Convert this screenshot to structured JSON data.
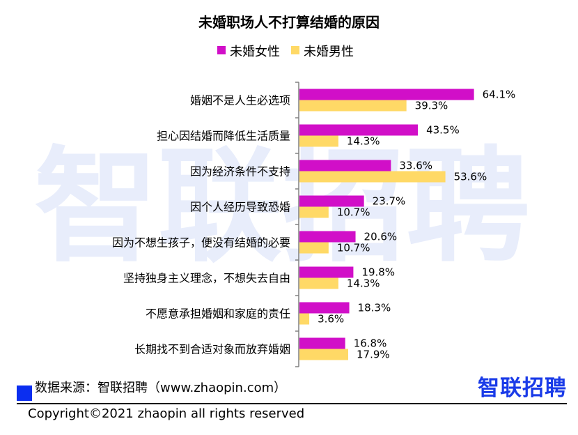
{
  "chart_data": {
    "type": "bar",
    "orientation": "horizontal",
    "title": "未婚职场人不打算结婚的原因",
    "categories": [
      "婚姻不是人生必选项",
      "担心因结婚而降低生活质量",
      "因为经济条件不支持",
      "因个人经历导致恐婚",
      "因为不想生孩子，便没有结婚的必要",
      "坚持独身主义理念，不想失去自由",
      "不愿意承担婚姻和家庭的责任",
      "长期找不到合适对象而放弃婚姻"
    ],
    "series": [
      {
        "name": "未婚女性",
        "color": "#d10fc8",
        "values": [
          64.1,
          43.5,
          33.6,
          23.7,
          20.6,
          19.8,
          18.3,
          16.8
        ],
        "labels": [
          "64.1%",
          "43.5%",
          "33.6%",
          "23.7%",
          "20.6%",
          "19.8%",
          "18.3%",
          "16.8%"
        ]
      },
      {
        "name": "未婚男性",
        "color": "#ffd966",
        "values": [
          39.3,
          14.3,
          53.6,
          10.7,
          10.7,
          14.3,
          3.6,
          17.9
        ],
        "labels": [
          "39.3%",
          "14.3%",
          "53.6%",
          "10.7%",
          "10.7%",
          "14.3%",
          "3.6%",
          "17.9%"
        ]
      }
    ],
    "value_unit": "%",
    "xlim": [
      0,
      100
    ],
    "grid": false,
    "legend_position": "top"
  },
  "watermark": {
    "text": "智联招聘"
  },
  "source": {
    "text": "数据来源：智联招聘（www.zhaopin.com）",
    "square_color": "#0b2ef0"
  },
  "logo": {
    "text": "智联招聘",
    "color": "#1a3be8"
  },
  "copyright": {
    "text": "Copyright©2021 zhaopin all rights reserved"
  }
}
